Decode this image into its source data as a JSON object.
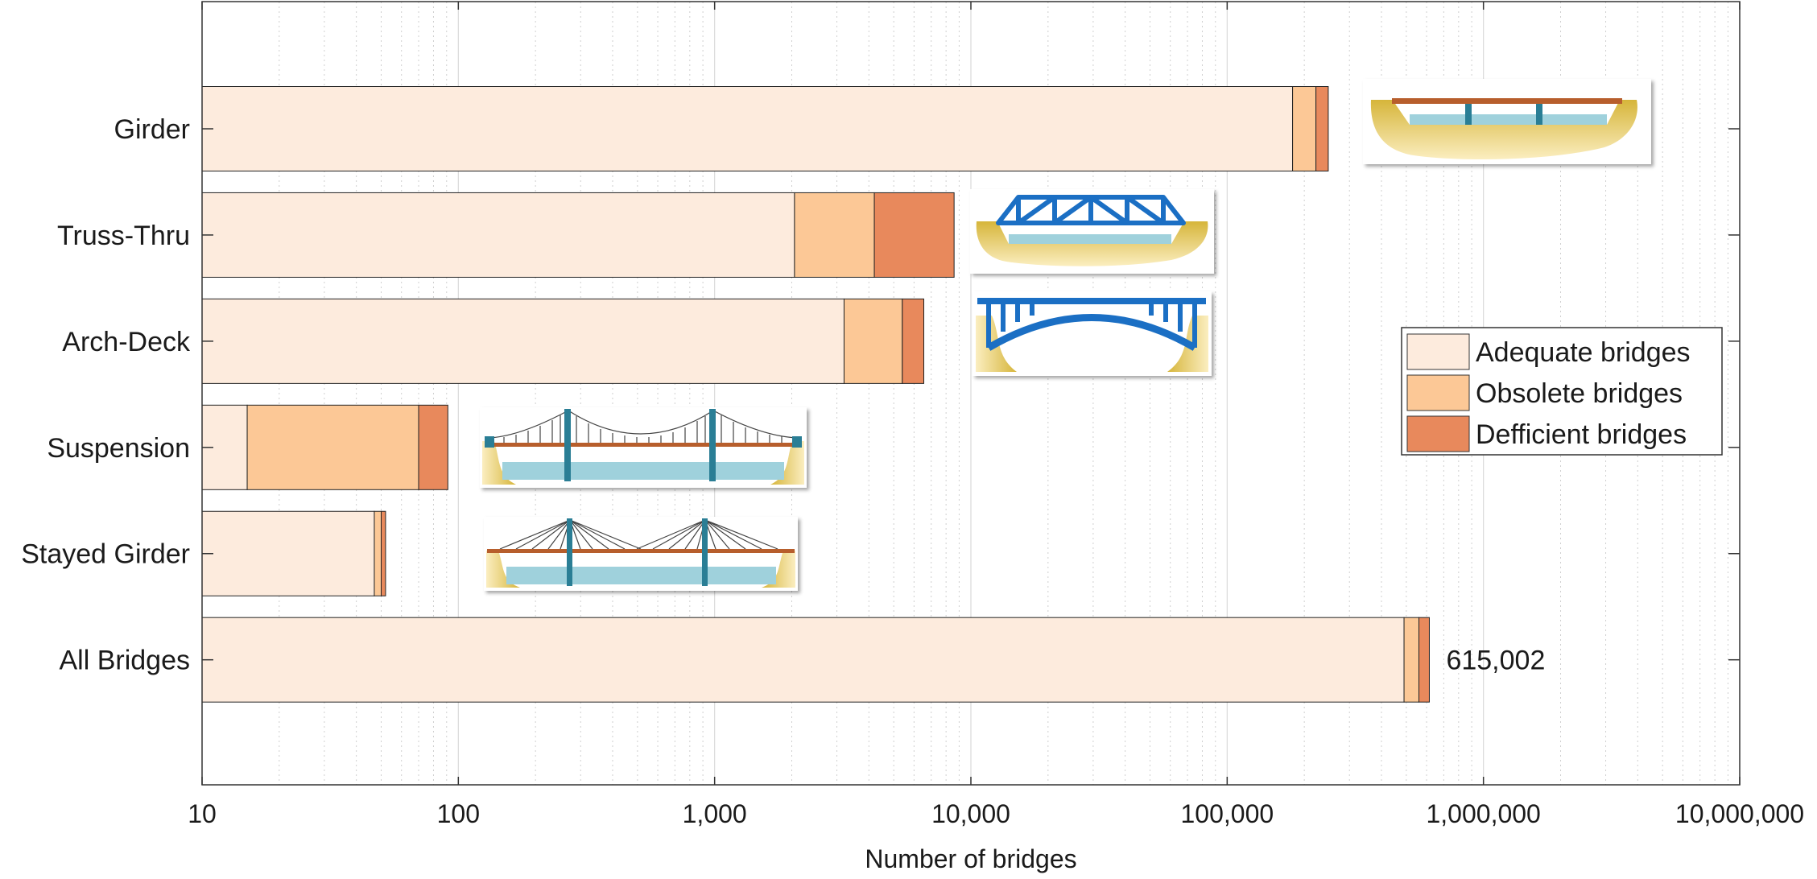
{
  "chart_data": {
    "type": "bar",
    "orientation": "horizontal",
    "stacked": true,
    "x_scale": "log",
    "xlabel": "Number of bridges",
    "xlim": [
      10,
      10000000
    ],
    "x_ticks": [
      10,
      100,
      1000,
      10000,
      100000,
      1000000,
      10000000
    ],
    "x_tick_labels": [
      "10",
      "100",
      "1,000",
      "10,000",
      "100,000",
      "1,000,000",
      "10,000,000"
    ],
    "grid": "vertical-minor-dotted",
    "categories": [
      "Girder",
      "Truss-Thru",
      "Arch-Deck",
      "Suspension",
      "Stayed Girder",
      "All Bridges"
    ],
    "series": [
      {
        "name": "Adequate bridges",
        "color": "#fdebdd",
        "cumulative_values": [
          180000,
          2050,
          3200,
          15,
          47,
          490000
        ]
      },
      {
        "name": "Obsolete bridges",
        "color": "#fcc896",
        "cumulative_values": [
          222000,
          4200,
          5400,
          70,
          50,
          560000
        ]
      },
      {
        "name": "Defficient bridges",
        "color": "#e8895c",
        "cumulative_values": [
          248000,
          8600,
          6550,
          91,
          52,
          615002
        ]
      }
    ],
    "annotations": [
      {
        "category": "All Bridges",
        "text": "615,002"
      }
    ],
    "legend": {
      "position": "right",
      "entries": [
        "Adequate bridges",
        "Obsolete bridges",
        "Defficient bridges"
      ]
    },
    "illustrations": [
      "girder-bridge-icon",
      "truss-bridge-icon",
      "arch-bridge-icon",
      "suspension-bridge-icon",
      "cable-stayed-bridge-icon"
    ]
  }
}
